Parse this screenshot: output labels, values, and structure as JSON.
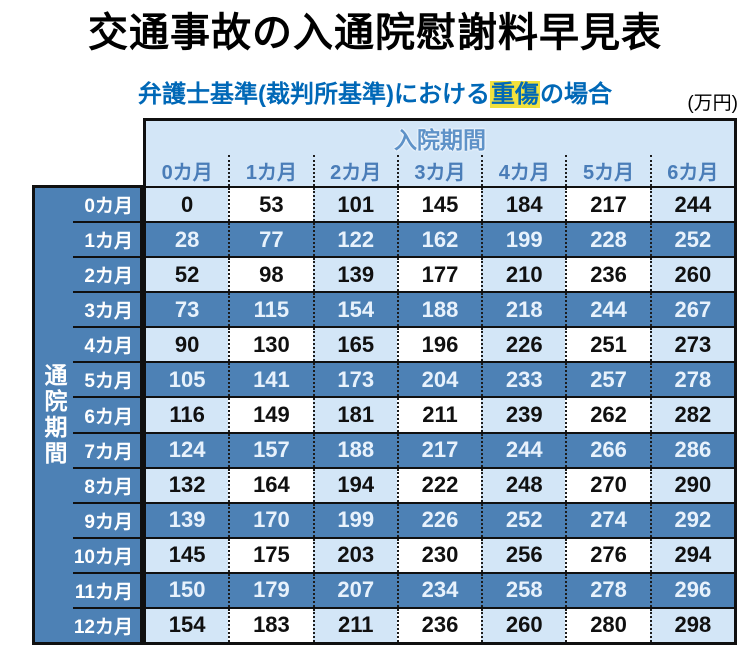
{
  "chart_data": {
    "type": "table",
    "title": "交通事故の入通院慰謝料早見表",
    "subtitle_prefix": "弁護士基準(裁判所基準)における",
    "subtitle_highlight": "重傷",
    "subtitle_suffix": "の場合",
    "unit_label": "(万円)",
    "column_group_header": "入院期間",
    "row_group_header": "通院期間",
    "column_headers": [
      "0カ月",
      "1カ月",
      "2カ月",
      "3カ月",
      "4カ月",
      "5カ月",
      "6カ月"
    ],
    "row_headers": [
      "0カ月",
      "1カ月",
      "2カ月",
      "3カ月",
      "4カ月",
      "5カ月",
      "6カ月",
      "7カ月",
      "8カ月",
      "9カ月",
      "10カ月",
      "11カ月",
      "12カ月"
    ],
    "values": [
      [
        0,
        53,
        101,
        145,
        184,
        217,
        244
      ],
      [
        28,
        77,
        122,
        162,
        199,
        228,
        252
      ],
      [
        52,
        98,
        139,
        177,
        210,
        236,
        260
      ],
      [
        73,
        115,
        154,
        188,
        218,
        244,
        267
      ],
      [
        90,
        130,
        165,
        196,
        226,
        251,
        273
      ],
      [
        105,
        141,
        173,
        204,
        233,
        257,
        278
      ],
      [
        116,
        149,
        181,
        211,
        239,
        262,
        282
      ],
      [
        124,
        157,
        188,
        217,
        244,
        266,
        286
      ],
      [
        132,
        164,
        194,
        222,
        248,
        270,
        290
      ],
      [
        139,
        170,
        199,
        226,
        252,
        274,
        292
      ],
      [
        145,
        175,
        203,
        230,
        256,
        276,
        294
      ],
      [
        150,
        179,
        207,
        234,
        258,
        278,
        296
      ],
      [
        154,
        183,
        211,
        236,
        260,
        280,
        298
      ]
    ]
  },
  "colors": {
    "medium_blue": "#4d81b5",
    "light_blue": "#d3e6f7",
    "header_text_blue": "#4a7db8",
    "group_header_blue": "#5e92c8",
    "subtitle_blue": "#0068b7",
    "highlight_yellow": "#f2e13c",
    "dark_row_text": "#e8f2fc",
    "border_black": "#101010"
  }
}
